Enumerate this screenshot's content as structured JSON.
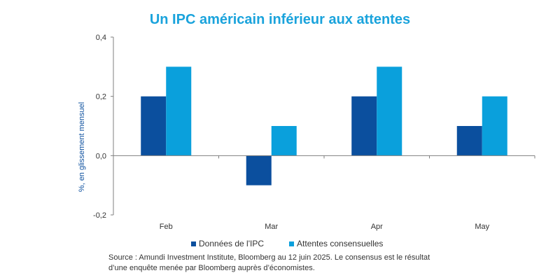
{
  "chart_data": {
    "type": "bar",
    "title": "Un IPC américain inférieur aux attentes",
    "ylabel": "%, en glissement mensuel",
    "xlabel": "",
    "categories": [
      "Feb",
      "Mar",
      "Apr",
      "May"
    ],
    "series": [
      {
        "name": "Données de l'IPC",
        "values": [
          0.2,
          -0.1,
          0.2,
          0.1
        ],
        "color": "#0b4f9e"
      },
      {
        "name": "Attentes consensuelles",
        "values": [
          0.3,
          0.1,
          0.3,
          0.2
        ],
        "color": "#0aa0dc"
      }
    ],
    "ylim": [
      -0.2,
      0.4
    ],
    "yticks": [
      -0.2,
      0.0,
      0.2,
      0.4
    ],
    "ytick_labels": [
      "-0,2",
      "0,0",
      "0,2",
      "0,4"
    ],
    "grid": false,
    "legend_position": "bottom"
  },
  "source": {
    "line1": "Source : Amundi Investment Institute, Bloomberg au 12 juin 2025. Le consensus est le résultat",
    "line2": "d’une enquête menée par Bloomberg auprès d’économistes."
  }
}
